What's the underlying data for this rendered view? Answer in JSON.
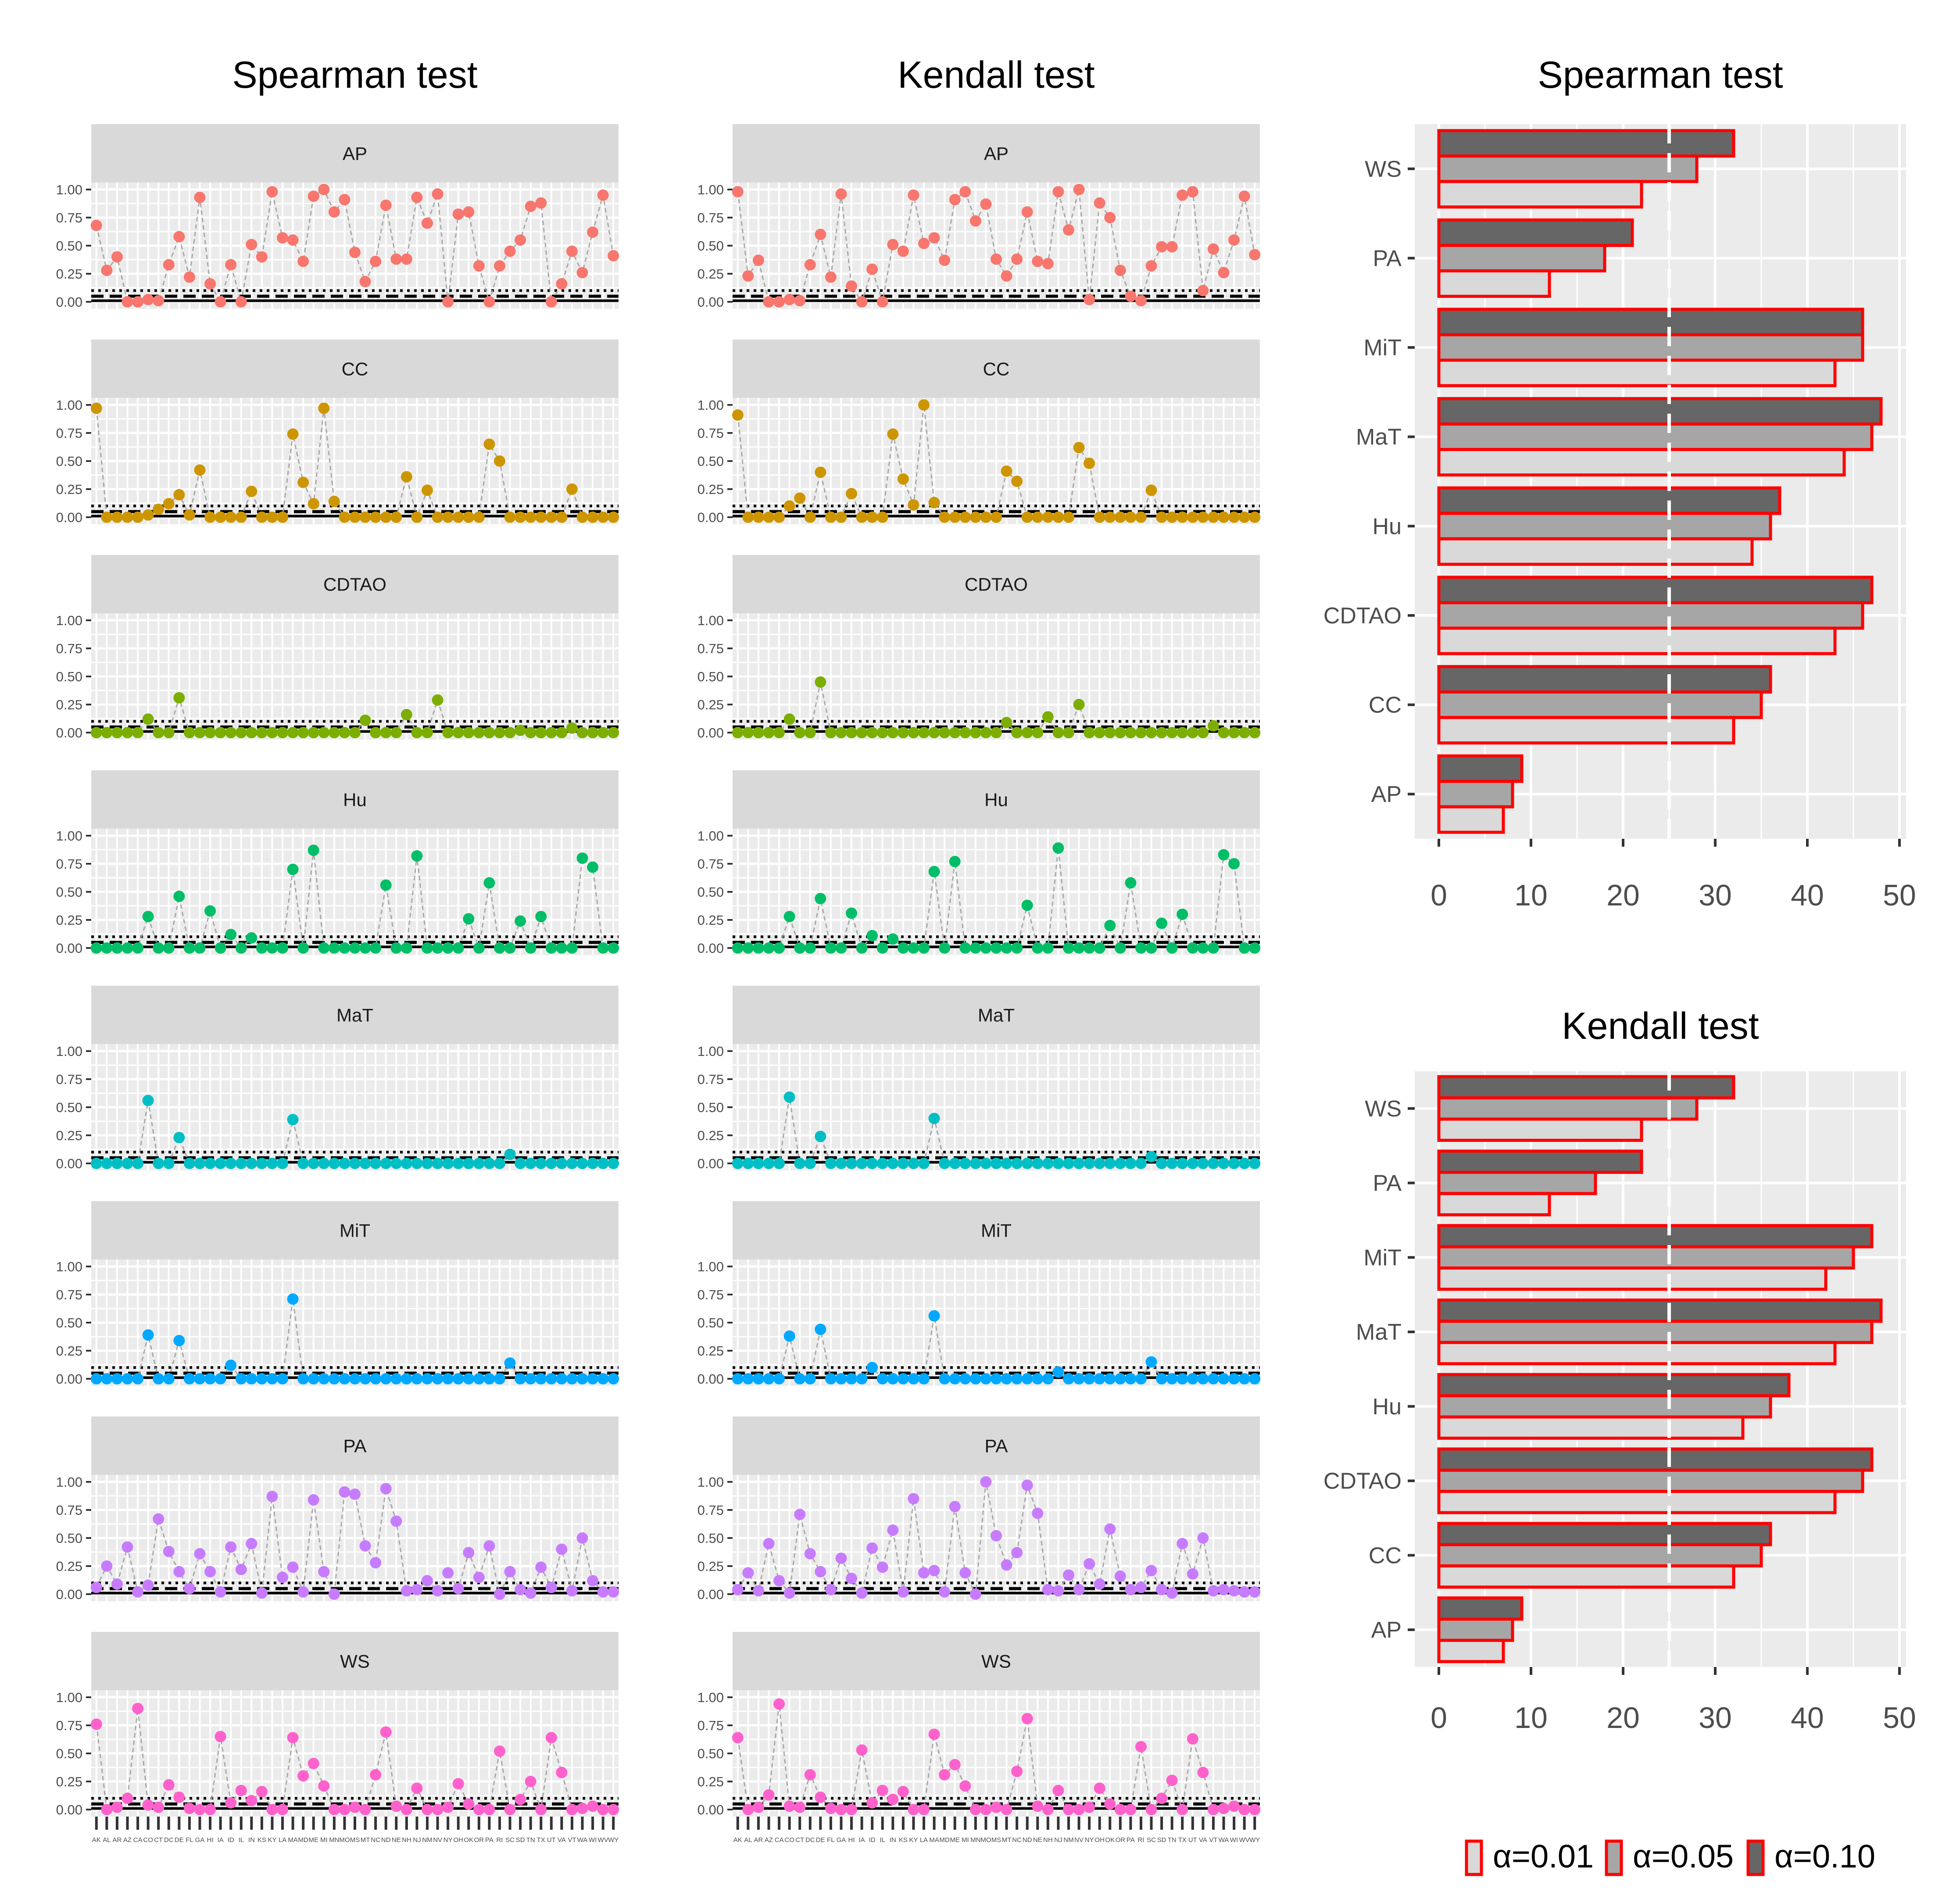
{
  "colors": {
    "AP": "#F8766D",
    "CC": "#CD9600",
    "CDTAO": "#7CAE00",
    "Hu": "#00BE67",
    "MaT": "#00BFC4",
    "MiT": "#00A9FF",
    "PA": "#C77CFF",
    "WS": "#FF61CC",
    "bar_fill_0.01": "#D9D9D9",
    "bar_fill_0.05": "#A6A6A6",
    "bar_fill_0.10": "#666666",
    "bar_outline": "#FF0000",
    "strip_bg": "#D9D9D9",
    "panel_bg": "#EBEBEB"
  },
  "states": [
    "AK",
    "AL",
    "AR",
    "AZ",
    "CA",
    "CO",
    "CT",
    "DC",
    "DE",
    "FL",
    "GA",
    "HI",
    "IA",
    "ID",
    "IL",
    "IN",
    "KS",
    "KY",
    "LA",
    "MA",
    "MD",
    "ME",
    "MI",
    "MN",
    "MO",
    "MS",
    "MT",
    "NC",
    "ND",
    "NE",
    "NH",
    "NJ",
    "NM",
    "NV",
    "NY",
    "OH",
    "OK",
    "OR",
    "PA",
    "RI",
    "SC",
    "SD",
    "TN",
    "TX",
    "UT",
    "VA",
    "VT",
    "WA",
    "WI",
    "WV",
    "WY"
  ],
  "chart_data": [
    {
      "type": "scatter",
      "title": "Spearman test",
      "facets": [
        "AP",
        "CC",
        "CDTAO",
        "Hu",
        "MaT",
        "MiT",
        "PA",
        "WS"
      ],
      "ylim": [
        0,
        1
      ],
      "y_ticks": [
        "0.00",
        "0.25",
        "0.50",
        "0.75",
        "1.00"
      ],
      "reference_lines": [
        0.01,
        0.05,
        0.1
      ],
      "series": [
        {
          "name": "AP",
          "values": [
            0.68,
            0.28,
            0.4,
            0.0,
            0.0,
            0.02,
            0.01,
            0.33,
            0.58,
            0.22,
            0.93,
            0.16,
            0.0,
            0.33,
            0.0,
            0.51,
            0.4,
            0.98,
            0.57,
            0.55,
            0.36,
            0.94,
            1.0,
            0.8,
            0.91,
            0.44,
            0.18,
            0.36,
            0.86,
            0.38,
            0.38,
            0.93,
            0.7,
            0.96,
            0.0,
            0.78,
            0.8,
            0.32,
            0.0,
            0.32,
            0.45,
            0.55,
            0.85,
            0.88,
            0.0,
            0.16,
            0.45,
            0.26,
            0.62,
            0.95,
            0.41
          ]
        },
        {
          "name": "CC",
          "values": [
            0.97,
            0.0,
            0.0,
            0.0,
            0.0,
            0.02,
            0.07,
            0.12,
            0.2,
            0.02,
            0.42,
            0.0,
            0.0,
            0.0,
            0.0,
            0.23,
            0.0,
            0.0,
            0.0,
            0.74,
            0.31,
            0.12,
            0.97,
            0.14,
            0.0,
            0.0,
            0.0,
            0.0,
            0.0,
            0.0,
            0.36,
            0.0,
            0.24,
            0.0,
            0.0,
            0.0,
            0.0,
            0.0,
            0.65,
            0.5,
            0.0,
            0.0,
            0.0,
            0.0,
            0.0,
            0.0,
            0.25,
            0.0,
            0.0,
            0.0,
            0.0
          ]
        },
        {
          "name": "CDTAO",
          "values": [
            0.0,
            0.0,
            0.0,
            0.0,
            0.0,
            0.12,
            0.0,
            0.0,
            0.31,
            0.0,
            0.0,
            0.0,
            0.0,
            0.0,
            0.0,
            0.0,
            0.0,
            0.0,
            0.0,
            0.0,
            0.0,
            0.0,
            0.0,
            0.0,
            0.0,
            0.0,
            0.11,
            0.0,
            0.0,
            0.0,
            0.16,
            0.0,
            0.0,
            0.29,
            0.0,
            0.0,
            0.0,
            0.0,
            0.0,
            0.0,
            0.0,
            0.02,
            0.0,
            0.0,
            0.0,
            0.0,
            0.04,
            0.0,
            0.0,
            0.0,
            0.0
          ]
        },
        {
          "name": "Hu",
          "values": [
            0.0,
            0.0,
            0.0,
            0.0,
            0.0,
            0.28,
            0.0,
            0.0,
            0.46,
            0.0,
            0.0,
            0.33,
            0.0,
            0.12,
            0.0,
            0.09,
            0.0,
            0.0,
            0.0,
            0.7,
            0.0,
            0.87,
            0.0,
            0.0,
            0.0,
            0.0,
            0.0,
            0.0,
            0.56,
            0.0,
            0.0,
            0.82,
            0.0,
            0.0,
            0.0,
            0.0,
            0.26,
            0.0,
            0.58,
            0.0,
            0.0,
            0.24,
            0.0,
            0.28,
            0.0,
            0.0,
            0.0,
            0.8,
            0.72,
            0.0,
            0.0
          ]
        },
        {
          "name": "MaT",
          "values": [
            0.0,
            0.0,
            0.0,
            0.0,
            0.0,
            0.56,
            0.0,
            0.0,
            0.23,
            0.0,
            0.0,
            0.0,
            0.0,
            0.0,
            0.0,
            0.0,
            0.0,
            0.0,
            0.0,
            0.39,
            0.0,
            0.0,
            0.0,
            0.0,
            0.0,
            0.0,
            0.0,
            0.0,
            0.0,
            0.0,
            0.0,
            0.0,
            0.0,
            0.0,
            0.0,
            0.0,
            0.0,
            0.0,
            0.0,
            0.0,
            0.08,
            0.0,
            0.0,
            0.0,
            0.0,
            0.0,
            0.0,
            0.0,
            0.0,
            0.0,
            0.0
          ]
        },
        {
          "name": "MiT",
          "values": [
            0.0,
            0.0,
            0.0,
            0.0,
            0.0,
            0.39,
            0.0,
            0.0,
            0.34,
            0.0,
            0.0,
            0.0,
            0.0,
            0.12,
            0.0,
            0.0,
            0.0,
            0.0,
            0.0,
            0.71,
            0.0,
            0.0,
            0.0,
            0.0,
            0.0,
            0.0,
            0.0,
            0.0,
            0.0,
            0.0,
            0.0,
            0.0,
            0.0,
            0.0,
            0.0,
            0.0,
            0.0,
            0.0,
            0.0,
            0.0,
            0.14,
            0.0,
            0.0,
            0.0,
            0.0,
            0.0,
            0.0,
            0.0,
            0.0,
            0.0,
            0.0
          ]
        },
        {
          "name": "PA",
          "values": [
            0.06,
            0.25,
            0.09,
            0.42,
            0.02,
            0.08,
            0.67,
            0.38,
            0.2,
            0.05,
            0.36,
            0.2,
            0.02,
            0.42,
            0.22,
            0.45,
            0.01,
            0.87,
            0.15,
            0.24,
            0.02,
            0.84,
            0.2,
            0.0,
            0.91,
            0.89,
            0.43,
            0.28,
            0.94,
            0.65,
            0.03,
            0.04,
            0.12,
            0.03,
            0.19,
            0.05,
            0.37,
            0.15,
            0.43,
            0.0,
            0.2,
            0.04,
            0.01,
            0.24,
            0.06,
            0.4,
            0.03,
            0.5,
            0.12,
            0.02,
            0.02
          ]
        },
        {
          "name": "WS",
          "values": [
            0.76,
            0.0,
            0.02,
            0.1,
            0.9,
            0.04,
            0.02,
            0.22,
            0.11,
            0.01,
            0.0,
            0.0,
            0.65,
            0.06,
            0.17,
            0.08,
            0.16,
            0.0,
            0.0,
            0.64,
            0.3,
            0.41,
            0.21,
            0.0,
            0.0,
            0.02,
            0.0,
            0.31,
            0.69,
            0.03,
            0.0,
            0.19,
            0.0,
            0.0,
            0.02,
            0.23,
            0.05,
            0.0,
            0.0,
            0.52,
            0.0,
            0.09,
            0.25,
            0.0,
            0.64,
            0.33,
            0.0,
            0.01,
            0.03,
            0.0,
            0.0
          ]
        }
      ]
    },
    {
      "type": "scatter",
      "title": "Kendall test",
      "facets": [
        "AP",
        "CC",
        "CDTAO",
        "Hu",
        "MaT",
        "MiT",
        "PA",
        "WS"
      ],
      "ylim": [
        0,
        1
      ],
      "y_ticks": [
        "0.00",
        "0.25",
        "0.50",
        "0.75",
        "1.00"
      ],
      "reference_lines": [
        0.01,
        0.05,
        0.1
      ],
      "series": [
        {
          "name": "AP",
          "values": [
            0.98,
            0.23,
            0.37,
            0.0,
            0.0,
            0.02,
            0.01,
            0.33,
            0.6,
            0.22,
            0.96,
            0.14,
            0.0,
            0.29,
            0.0,
            0.51,
            0.45,
            0.95,
            0.52,
            0.57,
            0.37,
            0.91,
            0.98,
            0.72,
            0.87,
            0.38,
            0.23,
            0.38,
            0.8,
            0.36,
            0.34,
            0.98,
            0.64,
            1.0,
            0.02,
            0.88,
            0.75,
            0.28,
            0.05,
            0.01,
            0.32,
            0.49,
            0.49,
            0.95,
            0.98,
            0.1,
            0.47,
            0.26,
            0.55,
            0.94,
            0.42
          ]
        },
        {
          "name": "CC",
          "values": [
            0.91,
            0.0,
            0.0,
            0.0,
            0.0,
            0.1,
            0.17,
            0.0,
            0.4,
            0.0,
            0.0,
            0.21,
            0.0,
            0.0,
            0.0,
            0.74,
            0.34,
            0.11,
            1.0,
            0.13,
            0.0,
            0.0,
            0.0,
            0.0,
            0.0,
            0.0,
            0.41,
            0.32,
            0.0,
            0.0,
            0.0,
            0.0,
            0.0,
            0.62,
            0.48,
            0.0,
            0.0,
            0.0,
            0.0,
            0.0,
            0.24,
            0.0,
            0.0,
            0.0,
            0.0,
            0.0,
            0.0,
            0.0,
            0.0,
            0.0,
            0.0
          ]
        },
        {
          "name": "CDTAO",
          "values": [
            0.0,
            0.0,
            0.0,
            0.0,
            0.0,
            0.12,
            0.0,
            0.0,
            0.45,
            0.0,
            0.0,
            0.0,
            0.0,
            0.0,
            0.0,
            0.0,
            0.0,
            0.0,
            0.0,
            0.0,
            0.0,
            0.0,
            0.0,
            0.0,
            0.0,
            0.0,
            0.09,
            0.0,
            0.0,
            0.0,
            0.14,
            0.0,
            0.0,
            0.25,
            0.0,
            0.0,
            0.0,
            0.0,
            0.0,
            0.0,
            0.0,
            0.0,
            0.0,
            0.0,
            0.0,
            0.0,
            0.06,
            0.0,
            0.0,
            0.0,
            0.0
          ]
        },
        {
          "name": "Hu",
          "values": [
            0.0,
            0.0,
            0.0,
            0.0,
            0.0,
            0.28,
            0.0,
            0.0,
            0.44,
            0.0,
            0.0,
            0.31,
            0.0,
            0.11,
            0.0,
            0.08,
            0.0,
            0.0,
            0.0,
            0.68,
            0.0,
            0.77,
            0.0,
            0.0,
            0.0,
            0.0,
            0.0,
            0.0,
            0.38,
            0.0,
            0.0,
            0.89,
            0.0,
            0.0,
            0.0,
            0.0,
            0.2,
            0.0,
            0.58,
            0.0,
            0.0,
            0.22,
            0.0,
            0.3,
            0.0,
            0.0,
            0.0,
            0.83,
            0.75,
            0.0,
            0.0
          ]
        },
        {
          "name": "MaT",
          "values": [
            0.0,
            0.0,
            0.0,
            0.0,
            0.0,
            0.59,
            0.0,
            0.0,
            0.24,
            0.0,
            0.0,
            0.0,
            0.0,
            0.0,
            0.0,
            0.0,
            0.0,
            0.0,
            0.0,
            0.4,
            0.0,
            0.0,
            0.0,
            0.0,
            0.0,
            0.0,
            0.0,
            0.0,
            0.0,
            0.0,
            0.0,
            0.0,
            0.0,
            0.0,
            0.0,
            0.0,
            0.0,
            0.0,
            0.0,
            0.0,
            0.06,
            0.0,
            0.0,
            0.0,
            0.0,
            0.0,
            0.0,
            0.0,
            0.0,
            0.0,
            0.0
          ]
        },
        {
          "name": "MiT",
          "values": [
            0.0,
            0.0,
            0.0,
            0.0,
            0.0,
            0.38,
            0.0,
            0.0,
            0.44,
            0.0,
            0.0,
            0.0,
            0.0,
            0.1,
            0.0,
            0.0,
            0.0,
            0.0,
            0.0,
            0.56,
            0.0,
            0.0,
            0.0,
            0.0,
            0.0,
            0.0,
            0.0,
            0.0,
            0.0,
            0.0,
            0.0,
            0.06,
            0.0,
            0.0,
            0.0,
            0.0,
            0.0,
            0.0,
            0.0,
            0.0,
            0.15,
            0.0,
            0.0,
            0.0,
            0.0,
            0.0,
            0.0,
            0.0,
            0.0,
            0.0,
            0.0
          ]
        },
        {
          "name": "PA",
          "values": [
            0.04,
            0.19,
            0.03,
            0.45,
            0.12,
            0.01,
            0.71,
            0.36,
            0.2,
            0.04,
            0.32,
            0.14,
            0.01,
            0.41,
            0.24,
            0.57,
            0.02,
            0.85,
            0.19,
            0.21,
            0.02,
            0.78,
            0.19,
            0.0,
            1.0,
            0.52,
            0.26,
            0.37,
            0.97,
            0.72,
            0.04,
            0.03,
            0.17,
            0.04,
            0.27,
            0.09,
            0.58,
            0.16,
            0.04,
            0.06,
            0.21,
            0.04,
            0.01,
            0.45,
            0.18,
            0.5,
            0.03,
            0.04,
            0.03,
            0.02,
            0.02
          ]
        },
        {
          "name": "WS",
          "values": [
            0.64,
            0.0,
            0.02,
            0.13,
            0.94,
            0.03,
            0.02,
            0.31,
            0.11,
            0.01,
            0.0,
            0.0,
            0.53,
            0.06,
            0.17,
            0.09,
            0.16,
            0.0,
            0.0,
            0.67,
            0.31,
            0.4,
            0.21,
            0.0,
            0.0,
            0.02,
            0.0,
            0.34,
            0.81,
            0.03,
            0.0,
            0.17,
            0.0,
            0.0,
            0.02,
            0.19,
            0.05,
            0.0,
            0.0,
            0.56,
            0.0,
            0.1,
            0.26,
            0.0,
            0.63,
            0.33,
            0.0,
            0.01,
            0.03,
            0.0,
            0.0
          ]
        }
      ]
    },
    {
      "type": "bar",
      "orientation": "horizontal",
      "title": "Spearman test",
      "categories": [
        "AP",
        "CC",
        "CDTAO",
        "Hu",
        "MaT",
        "MiT",
        "PA",
        "WS"
      ],
      "xlim": [
        0,
        50
      ],
      "x_ticks": [
        0,
        10,
        20,
        30,
        40,
        50
      ],
      "reference_line": 25,
      "series": [
        {
          "name": "α=0.01",
          "values": [
            7,
            32,
            43,
            34,
            44,
            43,
            12,
            22
          ]
        },
        {
          "name": "α=0.05",
          "values": [
            8,
            35,
            46,
            36,
            47,
            46,
            18,
            28
          ]
        },
        {
          "name": "α=0.10",
          "values": [
            9,
            36,
            47,
            37,
            48,
            46,
            21,
            32
          ]
        }
      ]
    },
    {
      "type": "bar",
      "orientation": "horizontal",
      "title": "Kendall test",
      "categories": [
        "AP",
        "CC",
        "CDTAO",
        "Hu",
        "MaT",
        "MiT",
        "PA",
        "WS"
      ],
      "xlim": [
        0,
        50
      ],
      "x_ticks": [
        0,
        10,
        20,
        30,
        40,
        50
      ],
      "reference_line": 25,
      "series": [
        {
          "name": "α=0.01",
          "values": [
            7,
            32,
            43,
            33,
            43,
            42,
            12,
            22
          ]
        },
        {
          "name": "α=0.05",
          "values": [
            8,
            35,
            46,
            36,
            47,
            45,
            17,
            28
          ]
        },
        {
          "name": "α=0.10",
          "values": [
            9,
            36,
            47,
            38,
            48,
            47,
            22,
            32
          ]
        }
      ]
    }
  ],
  "legend": {
    "placement": "bottom-right",
    "items": [
      "α=0.01",
      "α=0.05",
      "α=0.10"
    ]
  }
}
